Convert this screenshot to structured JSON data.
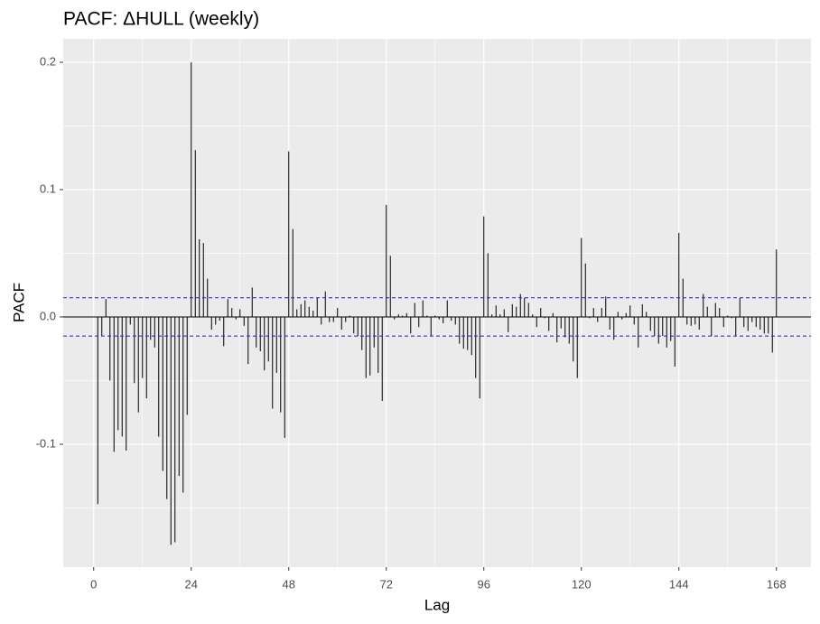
{
  "chart_data": {
    "type": "bar",
    "title": "PACF: ΔHULL (weekly)",
    "x_label": "Lag",
    "y_label": "PACF",
    "x": [
      1,
      2,
      3,
      4,
      5,
      6,
      7,
      8,
      9,
      10,
      11,
      12,
      13,
      14,
      15,
      16,
      17,
      18,
      19,
      20,
      21,
      22,
      23,
      24,
      25,
      26,
      27,
      28,
      29,
      30,
      31,
      32,
      33,
      34,
      35,
      36,
      37,
      38,
      39,
      40,
      41,
      42,
      43,
      44,
      45,
      46,
      47,
      48,
      49,
      50,
      51,
      52,
      53,
      54,
      55,
      56,
      57,
      58,
      59,
      60,
      61,
      62,
      63,
      64,
      65,
      66,
      67,
      68,
      69,
      70,
      71,
      72,
      73,
      74,
      75,
      76,
      77,
      78,
      79,
      80,
      81,
      82,
      83,
      84,
      85,
      86,
      87,
      88,
      89,
      90,
      91,
      92,
      93,
      94,
      95,
      96,
      97,
      98,
      99,
      100,
      101,
      102,
      103,
      104,
      105,
      106,
      107,
      108,
      109,
      110,
      111,
      112,
      113,
      114,
      115,
      116,
      117,
      118,
      119,
      120,
      121,
      122,
      123,
      124,
      125,
      126,
      127,
      128,
      129,
      130,
      131,
      132,
      133,
      134,
      135,
      136,
      137,
      138,
      139,
      140,
      141,
      142,
      143,
      144,
      145,
      146,
      147,
      148,
      149,
      150,
      151,
      152,
      153,
      154,
      155,
      156,
      157,
      158,
      159,
      160,
      161,
      162,
      163,
      164,
      165,
      166,
      167,
      168
    ],
    "values": [
      -0.147,
      -0.015,
      0.014,
      -0.05,
      -0.106,
      -0.089,
      -0.094,
      -0.105,
      -0.006,
      -0.052,
      -0.075,
      -0.048,
      -0.064,
      -0.018,
      -0.024,
      -0.094,
      -0.121,
      -0.143,
      -0.179,
      -0.177,
      -0.125,
      -0.138,
      -0.077,
      0.2,
      0.131,
      0.061,
      0.058,
      0.03,
      -0.01,
      -0.006,
      -0.003,
      -0.023,
      0.014,
      0.007,
      -0.002,
      0.006,
      -0.007,
      -0.037,
      0.023,
      -0.024,
      -0.027,
      -0.042,
      -0.035,
      -0.072,
      -0.044,
      -0.075,
      -0.095,
      0.13,
      0.069,
      0.006,
      0.01,
      0.013,
      0.008,
      0.005,
      0.015,
      -0.006,
      0.02,
      -0.004,
      -0.004,
      0.007,
      -0.01,
      -0.004,
      0.001,
      -0.013,
      -0.015,
      -0.026,
      -0.048,
      -0.046,
      -0.024,
      -0.044,
      -0.066,
      0.088,
      0.048,
      -0.002,
      0.002,
      0.001,
      0.003,
      -0.013,
      0.011,
      -0.008,
      0.013,
      0.001,
      -0.015,
      0.001,
      -0.002,
      -0.005,
      0.013,
      -0.003,
      -0.006,
      -0.021,
      -0.025,
      -0.026,
      -0.03,
      -0.048,
      -0.064,
      0.079,
      0.05,
      0.002,
      0.009,
      0.002,
      0.006,
      -0.012,
      0.01,
      0.008,
      0.018,
      0.015,
      0.011,
      0.002,
      -0.008,
      0.007,
      -0.001,
      -0.011,
      0.003,
      -0.02,
      -0.009,
      -0.016,
      -0.021,
      -0.035,
      -0.048,
      0.062,
      0.042,
      -0.001,
      0.007,
      -0.004,
      0.007,
      0.016,
      -0.01,
      -0.018,
      0.004,
      -0.002,
      0.003,
      0.009,
      -0.006,
      -0.024,
      0.01,
      0.004,
      -0.011,
      -0.015,
      -0.021,
      -0.015,
      -0.024,
      -0.019,
      -0.039,
      0.066,
      0.03,
      -0.006,
      -0.007,
      -0.006,
      -0.01,
      0.018,
      0.008,
      -0.015,
      0.011,
      0.007,
      -0.008,
      0.001,
      -0.001,
      -0.015,
      0.015,
      -0.008,
      -0.011,
      -0.004,
      -0.008,
      -0.01,
      -0.013,
      -0.013,
      -0.028,
      0.053
    ],
    "color": "#000000",
    "ci": 0.015,
    "ci_color": "#1f1fd0",
    "hline": 0,
    "xlim": [
      -7.5,
      176.5
    ],
    "ylim": [
      -0.1965,
      0.2184
    ],
    "xticks": [
      0,
      24,
      48,
      72,
      96,
      120,
      144,
      168
    ],
    "xminor": [
      12,
      36,
      60,
      84,
      108,
      132,
      156
    ],
    "yticks": [
      -0.1,
      {
        "value": 0,
        "label": "0.0"
      },
      0.1,
      0.2
    ],
    "yminor": [
      -0.15,
      -0.05,
      0.05,
      0.15
    ],
    "grid": true
  }
}
